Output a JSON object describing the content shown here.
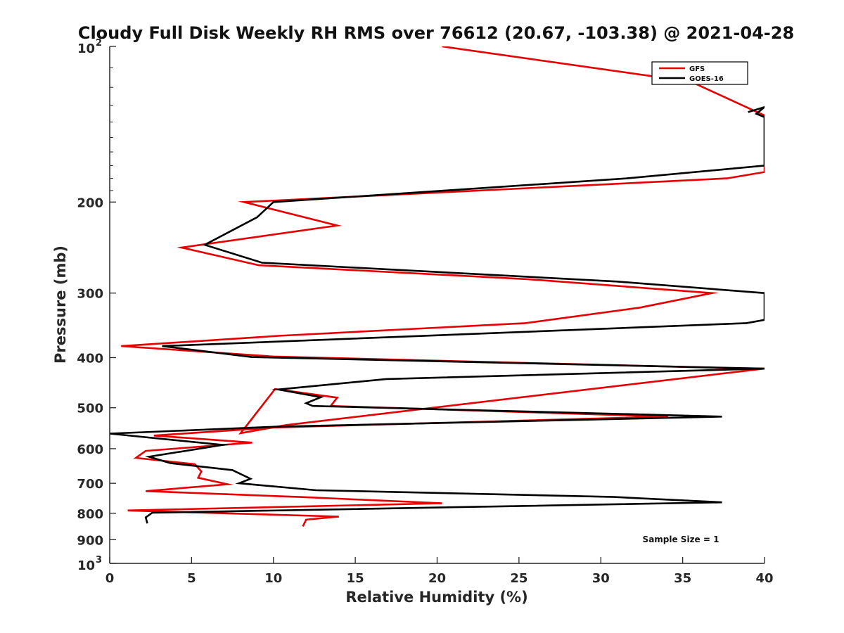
{
  "chart_data": {
    "type": "line",
    "title": "Cloudy Full Disk Weekly RH RMS over 76612 (20.67, -103.38) @ 2021-04-28",
    "xlabel": "Relative Humidity (%)",
    "ylabel": "Pressure (mb)",
    "xlim": [
      0,
      40
    ],
    "ylim": [
      100,
      1000
    ],
    "y_scale": "log",
    "y_reversed": true,
    "x_ticks": [
      "0",
      "5",
      "10",
      "15",
      "20",
      "25",
      "30",
      "35",
      "40"
    ],
    "y_ticks": [
      {
        "value": 100,
        "base": "10",
        "exp": "2"
      },
      {
        "value": 200,
        "label": "200"
      },
      {
        "value": 300,
        "label": "300"
      },
      {
        "value": 400,
        "label": "400"
      },
      {
        "value": 500,
        "label": "500"
      },
      {
        "value": 600,
        "label": "600"
      },
      {
        "value": 700,
        "label": "700"
      },
      {
        "value": 800,
        "label": "800"
      },
      {
        "value": 900,
        "label": "900"
      },
      {
        "value": 1000,
        "base": "10",
        "exp": "3"
      }
    ],
    "legend_position": "top-right",
    "annotation": "Sample Size = 1",
    "series": [
      {
        "name": "GFS",
        "color": "#e60000",
        "points": [
          [
            20.3,
            100
          ],
          [
            35.5,
            117
          ],
          [
            40,
            136
          ],
          [
            40,
            175
          ],
          [
            37.7,
            180
          ],
          [
            8.2,
            200
          ],
          [
            13.9,
            222
          ],
          [
            4.4,
            245
          ],
          [
            9.1,
            265
          ],
          [
            25.5,
            282
          ],
          [
            36.8,
            300
          ],
          [
            32.4,
            320
          ],
          [
            25.4,
            343
          ],
          [
            10.3,
            363
          ],
          [
            0.7,
            380
          ],
          [
            10.0,
            398
          ],
          [
            39.2,
            420
          ],
          [
            40,
            420
          ],
          [
            10.8,
            540
          ],
          [
            8.0,
            560
          ],
          [
            10.1,
            460
          ],
          [
            13.9,
            478
          ],
          [
            13.5,
            496
          ],
          [
            34.1,
            520
          ],
          [
            10.0,
            546
          ],
          [
            2.7,
            566
          ],
          [
            8.7,
            584
          ],
          [
            2.2,
            606
          ],
          [
            1.6,
            625
          ],
          [
            5.2,
            643
          ],
          [
            5.6,
            664
          ],
          [
            5.4,
            683
          ],
          [
            7.2,
            703
          ],
          [
            2.2,
            725
          ],
          [
            11.6,
            744
          ],
          [
            20.3,
            765
          ],
          [
            1.1,
            790
          ],
          [
            14.0,
            812
          ],
          [
            12.0,
            823
          ],
          [
            11.8,
            848
          ]
        ]
      },
      {
        "name": "GOES-16",
        "color": "#000000",
        "points": [
          [
            39.0,
            134
          ],
          [
            40,
            131
          ],
          [
            39.5,
            135
          ],
          [
            40,
            137
          ],
          [
            40,
            170
          ],
          [
            31.6,
            180
          ],
          [
            10.0,
            200
          ],
          [
            9.0,
            214
          ],
          [
            5.8,
            242
          ],
          [
            9.3,
            262
          ],
          [
            31.0,
            285
          ],
          [
            40,
            300
          ],
          [
            40,
            338
          ],
          [
            38.9,
            343
          ],
          [
            3.2,
            380
          ],
          [
            8.7,
            399
          ],
          [
            40,
            420
          ],
          [
            16.9,
            440
          ],
          [
            10.3,
            461
          ],
          [
            12.9,
            477
          ],
          [
            12.0,
            490
          ],
          [
            12.4,
            496
          ],
          [
            37.4,
            520
          ],
          [
            10.1,
            544
          ],
          [
            0,
            561
          ],
          [
            6.9,
            590
          ],
          [
            2.4,
            622
          ],
          [
            3.7,
            640
          ],
          [
            7.5,
            660
          ],
          [
            8.6,
            686
          ],
          [
            7.9,
            700
          ],
          [
            12.6,
            722
          ],
          [
            30.8,
            744
          ],
          [
            37.4,
            762
          ],
          [
            2.6,
            798
          ],
          [
            2.2,
            815
          ],
          [
            2.3,
            837
          ]
        ]
      }
    ]
  }
}
